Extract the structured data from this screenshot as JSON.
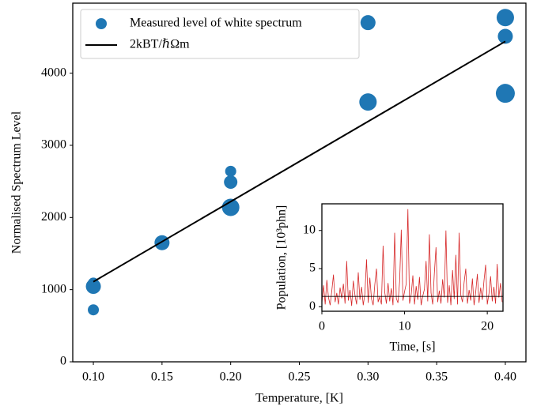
{
  "chart_data": [
    {
      "type": "scatter",
      "xlabel": "Temperature, [K]",
      "ylabel": "Normalised Spectrum Level",
      "xlim": [
        0.085,
        0.415
      ],
      "ylim": [
        0,
        4970
      ],
      "xticks": [
        {
          "value": 0.1,
          "label": "0.10"
        },
        {
          "value": 0.15,
          "label": "0.15"
        },
        {
          "value": 0.2,
          "label": "0.20"
        },
        {
          "value": 0.25,
          "label": "0.25"
        },
        {
          "value": 0.3,
          "label": "0.30"
        },
        {
          "value": 0.35,
          "label": "0.35"
        },
        {
          "value": 0.4,
          "label": "0.40"
        }
      ],
      "yticks": [
        0,
        1000,
        2000,
        3000,
        4000
      ],
      "legend": "upper left",
      "series": [
        {
          "name": "Measured level of white spectrum",
          "color": "#1f77b4",
          "x": [
            0.1,
            0.1,
            0.1,
            0.15,
            0.2,
            0.2,
            0.2,
            0.3,
            0.3,
            0.4,
            0.4,
            0.4
          ],
          "values": [
            1090,
            1045,
            720,
            1650,
            2640,
            2490,
            2140,
            4700,
            3600,
            4770,
            4510,
            3720
          ],
          "sizes": [
            7,
            9.5,
            7,
            9.5,
            7,
            8.5,
            11,
            9.5,
            11,
            11,
            9.5,
            12
          ]
        },
        {
          "name": "2kBT/ℏΩm",
          "color": "#000000",
          "type": "line",
          "x": [
            0.1,
            0.4
          ],
          "values": [
            1110,
            4440
          ]
        }
      ]
    },
    {
      "type": "line",
      "xlabel": "Time, [s]",
      "ylabel": "Population, [10³phn]",
      "xlim": [
        0,
        21.9
      ],
      "ylim": [
        -0.6,
        13.5
      ],
      "xticks": [
        0,
        10,
        20
      ],
      "yticks": [
        0,
        5,
        10
      ],
      "series": [
        {
          "color": "#d62728",
          "x": [
            0,
            0.2,
            0.4,
            0.6,
            0.8,
            1,
            1.2,
            1.4,
            1.6,
            1.8,
            2,
            2.2,
            2.4,
            2.6,
            2.8,
            3,
            3.2,
            3.4,
            3.6,
            3.8,
            4,
            4.2,
            4.4,
            4.6,
            4.8,
            5,
            5.2,
            5.4,
            5.6,
            5.8,
            6,
            6.2,
            6.4,
            6.6,
            6.8,
            7,
            7.2,
            7.4,
            7.6,
            7.8,
            8,
            8.2,
            8.4,
            8.6,
            8.8,
            9,
            9.2,
            9.4,
            9.6,
            9.8,
            10,
            10.2,
            10.4,
            10.6,
            10.8,
            11,
            11.2,
            11.4,
            11.6,
            11.8,
            12,
            12.2,
            12.4,
            12.6,
            12.8,
            13,
            13.2,
            13.4,
            13.6,
            13.8,
            14,
            14.2,
            14.4,
            14.6,
            14.8,
            15,
            15.2,
            15.4,
            15.6,
            15.8,
            16,
            16.2,
            16.4,
            16.6,
            16.8,
            17,
            17.2,
            17.4,
            17.6,
            17.8,
            18,
            18.2,
            18.4,
            18.6,
            18.8,
            19,
            19.2,
            19.4,
            19.6,
            19.8,
            20,
            20.2,
            20.4,
            20.6,
            20.8,
            21,
            21.2,
            21.4,
            21.6,
            21.8
          ],
          "values": [
            0.5,
            2.8,
            0.3,
            3.5,
            1.2,
            0.2,
            2.1,
            4.2,
            0.6,
            1.8,
            0.3,
            2.5,
            1.1,
            3.0,
            0.4,
            6.0,
            0.8,
            2.2,
            0.1,
            3.4,
            1.5,
            0.3,
            4.5,
            0.9,
            2.6,
            0.2,
            1.7,
            6.2,
            0.5,
            3.8,
            1.0,
            0.2,
            2.9,
            5.0,
            0.6,
            1.3,
            0.3,
            8.0,
            1.9,
            0.4,
            3.1,
            0.7,
            2.4,
            0.2,
            9.7,
            1.1,
            0.5,
            3.3,
            10.1,
            0.8,
            2.0,
            3.0,
            12.8,
            0.4,
            1.6,
            4.1,
            0.3,
            2.7,
            0.9,
            3.9,
            0.2,
            1.4,
            2.3,
            6.0,
            0.7,
            9.5,
            1.8,
            0.3,
            4.4,
            7.8,
            0.6,
            2.1,
            0.4,
            3.6,
            1.2,
            10.0,
            0.5,
            2.8,
            0.2,
            4.8,
            1.0,
            6.8,
            0.3,
            9.7,
            1.5,
            0.6,
            3.2,
            5.0,
            0.4,
            2.2,
            0.8,
            3.7,
            0.2,
            1.9,
            4.3,
            0.5,
            2.5,
            0.9,
            3.4,
            5.5,
            0.3,
            1.7,
            4.0,
            0.7,
            2.6,
            0.4,
            5.6,
            1.2,
            3.1,
            0.6
          ]
        },
        {
          "color": "#000000",
          "x": [
            0,
            21.9
          ],
          "values": [
            1.35,
            1.35
          ]
        }
      ]
    }
  ]
}
